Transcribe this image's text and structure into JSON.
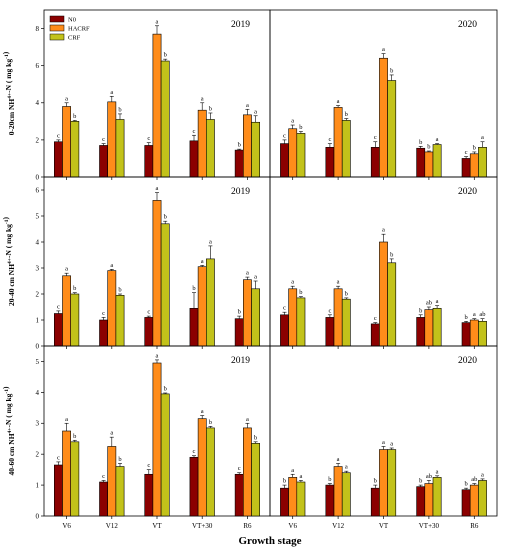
{
  "figure": {
    "x_axis_label": "Growth stage",
    "legend": [
      {
        "name": "N0",
        "color": "#8b0000"
      },
      {
        "name": "HACRF",
        "color": "#ff8c1a"
      },
      {
        "name": "CRF",
        "color": "#c2c21a"
      }
    ]
  },
  "chart_data": [
    {
      "type": "bar",
      "year": "2019",
      "ylabel": "0-20cm NH4+-N ( mg kg-1)",
      "ylim": [
        0,
        9
      ],
      "yticks": [
        0,
        2,
        4,
        6,
        8
      ],
      "categories": [
        "V6",
        "V12",
        "VT",
        "VT+30",
        "R6"
      ],
      "series": [
        {
          "name": "N0",
          "values": [
            1.9,
            1.7,
            1.7,
            1.95,
            1.45
          ],
          "errors": [
            0.1,
            0.1,
            0.15,
            0.3,
            0.05
          ],
          "labels": [
            "c",
            "c",
            "c",
            "c",
            "b"
          ]
        },
        {
          "name": "HACRF",
          "values": [
            3.8,
            4.05,
            7.7,
            3.6,
            3.35
          ],
          "errors": [
            0.2,
            0.3,
            0.45,
            0.4,
            0.3
          ],
          "labels": [
            "a",
            "a",
            "a",
            "a",
            "a"
          ]
        },
        {
          "name": "CRF",
          "values": [
            3.0,
            3.1,
            6.25,
            3.1,
            2.95
          ],
          "errors": [
            0.05,
            0.3,
            0.1,
            0.35,
            0.35
          ],
          "labels": [
            "b",
            "b",
            "b",
            "b",
            "a"
          ]
        }
      ]
    },
    {
      "type": "bar",
      "year": "2020",
      "ylabel": "",
      "ylim": [
        0,
        9
      ],
      "yticks": [],
      "categories": [
        "V6",
        "V12",
        "VT",
        "VT+30",
        "R6"
      ],
      "series": [
        {
          "name": "N0",
          "values": [
            1.8,
            1.6,
            1.6,
            1.55,
            1.0
          ],
          "errors": [
            0.2,
            0.2,
            0.3,
            0.1,
            0.1
          ],
          "labels": [
            "c",
            "c",
            "c",
            "b",
            "c"
          ]
        },
        {
          "name": "HACRF",
          "values": [
            2.6,
            3.75,
            6.4,
            1.35,
            1.25
          ],
          "errors": [
            0.2,
            0.1,
            0.25,
            0.05,
            0.1
          ],
          "labels": [
            "a",
            "a",
            "a",
            "b",
            "b"
          ]
        },
        {
          "name": "CRF",
          "values": [
            2.35,
            3.05,
            5.2,
            1.75,
            1.6
          ],
          "errors": [
            0.1,
            0.1,
            0.3,
            0.05,
            0.3
          ],
          "labels": [
            "b",
            "b",
            "b",
            "a",
            "a"
          ]
        }
      ]
    },
    {
      "type": "bar",
      "year": "2019",
      "ylabel": "20-40 cm NH4+-N ( mg kg-1)",
      "ylim": [
        0,
        6.5
      ],
      "yticks": [
        0,
        1,
        2,
        3,
        4,
        5,
        6
      ],
      "categories": [
        "V6",
        "V12",
        "VT",
        "VT+30",
        "R6"
      ],
      "series": [
        {
          "name": "N0",
          "values": [
            1.25,
            1.0,
            1.1,
            1.45,
            1.05
          ],
          "errors": [
            0.1,
            0.1,
            0.05,
            0.6,
            0.1
          ],
          "labels": [
            "c",
            "c",
            "c",
            "b",
            "b"
          ]
        },
        {
          "name": "HACRF",
          "values": [
            2.7,
            2.9,
            5.6,
            3.05,
            2.55
          ],
          "errors": [
            0.1,
            0.05,
            0.3,
            0.05,
            0.1
          ],
          "labels": [
            "a",
            "a",
            "a",
            "a",
            "a"
          ]
        },
        {
          "name": "CRF",
          "values": [
            2.0,
            1.95,
            4.7,
            3.35,
            2.2
          ],
          "errors": [
            0.05,
            0.05,
            0.1,
            0.5,
            0.3
          ],
          "labels": [
            "b",
            "b",
            "b",
            "a",
            "a"
          ]
        }
      ]
    },
    {
      "type": "bar",
      "year": "2020",
      "ylabel": "",
      "ylim": [
        0,
        6.5
      ],
      "yticks": [],
      "categories": [
        "V6",
        "V12",
        "VT",
        "VT+30",
        "R6"
      ],
      "series": [
        {
          "name": "N0",
          "values": [
            1.2,
            1.1,
            0.85,
            1.1,
            0.9
          ],
          "errors": [
            0.1,
            0.1,
            0.05,
            0.1,
            0.05
          ],
          "labels": [
            "c",
            "c",
            "c",
            "b",
            "b"
          ]
        },
        {
          "name": "HACRF",
          "values": [
            2.2,
            2.2,
            4.0,
            1.4,
            1.0
          ],
          "errors": [
            0.1,
            0.1,
            0.3,
            0.1,
            0.05
          ],
          "labels": [
            "a",
            "a",
            "a",
            "ab",
            "a"
          ]
        },
        {
          "name": "CRF",
          "values": [
            1.85,
            1.8,
            3.2,
            1.45,
            0.95
          ],
          "errors": [
            0.05,
            0.05,
            0.15,
            0.1,
            0.1
          ],
          "labels": [
            "b",
            "b",
            "b",
            "a",
            "ab"
          ]
        }
      ]
    },
    {
      "type": "bar",
      "year": "2019",
      "ylabel": "40-60 cm NH4+-N ( mg kg-1)",
      "ylim": [
        0,
        5.5
      ],
      "yticks": [
        0,
        1,
        2,
        3,
        4,
        5
      ],
      "categories": [
        "V6",
        "V12",
        "VT",
        "VT+30",
        "R6"
      ],
      "series": [
        {
          "name": "N0",
          "values": [
            1.65,
            1.1,
            1.35,
            1.9,
            1.35
          ],
          "errors": [
            0.1,
            0.05,
            0.15,
            0.05,
            0.05
          ],
          "labels": [
            "c",
            "c",
            "c",
            "c",
            "c"
          ]
        },
        {
          "name": "HACRF",
          "values": [
            2.75,
            2.25,
            4.95,
            3.15,
            2.85
          ],
          "errors": [
            0.25,
            0.3,
            0.1,
            0.1,
            0.15
          ],
          "labels": [
            "a",
            "a",
            "a",
            "a",
            "a"
          ]
        },
        {
          "name": "CRF",
          "values": [
            2.4,
            1.6,
            3.95,
            2.85,
            2.35
          ],
          "errors": [
            0.05,
            0.1,
            0.03,
            0.05,
            0.05
          ],
          "labels": [
            "b",
            "b",
            "b",
            "b",
            "b"
          ]
        }
      ]
    },
    {
      "type": "bar",
      "year": "2020",
      "ylabel": "",
      "ylim": [
        0,
        5.5
      ],
      "yticks": [],
      "categories": [
        "V6",
        "V12",
        "VT",
        "VT+30",
        "R6"
      ],
      "series": [
        {
          "name": "N0",
          "values": [
            0.9,
            1.0,
            0.9,
            0.95,
            0.85
          ],
          "errors": [
            0.1,
            0.05,
            0.1,
            0.05,
            0.05
          ],
          "labels": [
            "b",
            "b",
            "b",
            "b",
            "b"
          ]
        },
        {
          "name": "HACRF",
          "values": [
            1.25,
            1.6,
            2.15,
            1.05,
            1.0
          ],
          "errors": [
            0.1,
            0.1,
            0.1,
            0.1,
            0.05
          ],
          "labels": [
            "a",
            "a",
            "a",
            "ab",
            "ab"
          ]
        },
        {
          "name": "CRF",
          "values": [
            1.1,
            1.4,
            2.15,
            1.25,
            1.15
          ],
          "errors": [
            0.05,
            0.05,
            0.05,
            0.05,
            0.05
          ],
          "labels": [
            "a",
            "a",
            "a",
            "a",
            "a"
          ]
        }
      ]
    }
  ]
}
